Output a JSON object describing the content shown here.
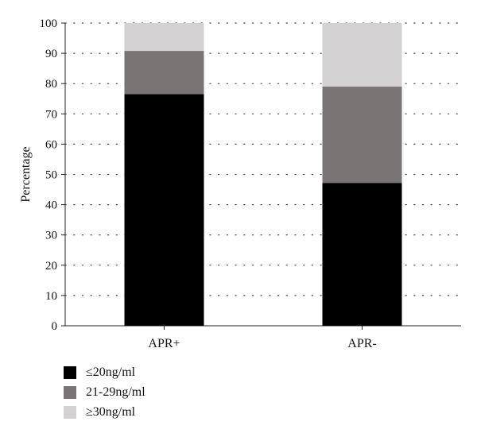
{
  "chart_data": {
    "type": "bar",
    "stacked": true,
    "categories": [
      "APR+",
      "APR-"
    ],
    "series": [
      {
        "name": "≤20ng/ml",
        "color": "#000000",
        "values": [
          76.5,
          47.2
        ]
      },
      {
        "name": "21-29ng/ml",
        "color": "#7a7574",
        "values": [
          14.3,
          31.8
        ]
      },
      {
        "name": "≥30ng/ml",
        "color": "#d3d1d2",
        "values": [
          9.2,
          21.0
        ]
      }
    ],
    "ylabel": "Percentage",
    "xlabel": "",
    "ylim": [
      0,
      100
    ],
    "yticks": [
      0,
      10,
      20,
      30,
      40,
      50,
      60,
      70,
      80,
      90,
      100
    ],
    "grid": "dotted-horizontal",
    "legend_position": "bottom-left"
  }
}
